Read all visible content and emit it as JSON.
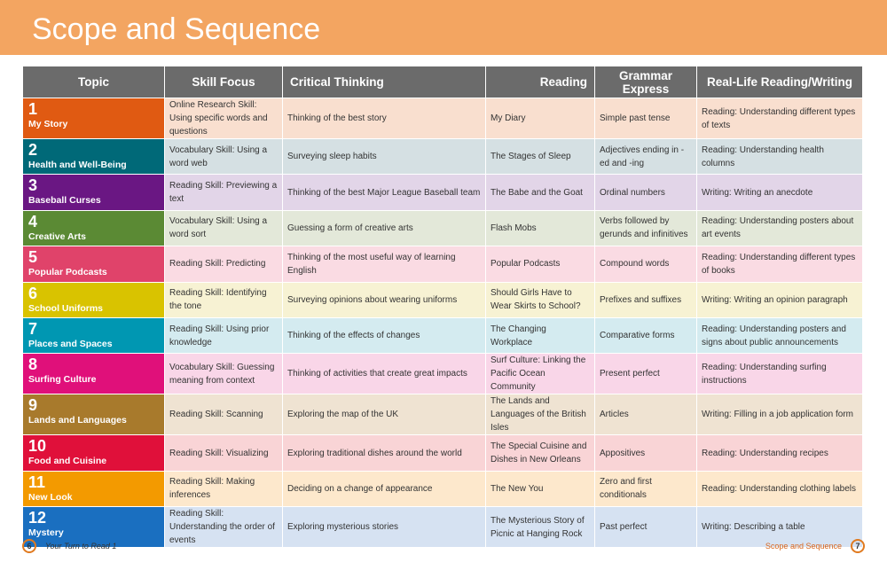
{
  "title": "Scope and Sequence",
  "headers": [
    "Topic",
    "Skill Focus",
    "Critical Thinking",
    "Reading",
    "Grammar Express",
    "Real-Life Reading/Writing"
  ],
  "rows": [
    {
      "num": "1",
      "topic": "My Story",
      "skill": "Online Research Skill: Using specific words and questions",
      "critical": "Thinking of the best story",
      "reading": "My Diary",
      "grammar": "Simple past tense",
      "real": "Reading: Understanding different types of texts",
      "color": "#e05a12",
      "bg": "#f9dfcf"
    },
    {
      "num": "2",
      "topic": "Health and Well-Being",
      "skill": "Vocabulary Skill: Using a word web",
      "critical": "Surveying sleep habits",
      "reading": "The Stages of Sleep",
      "grammar": "Adjectives ending in -ed and -ing",
      "real": "Reading: Understanding health columns",
      "color": "#006978",
      "bg": "#d5e0e3"
    },
    {
      "num": "3",
      "topic": "Baseball Curses",
      "skill": "Reading Skill: Previewing a text",
      "critical": "Thinking of the best Major League Baseball team",
      "reading": "The Babe and the Goat",
      "grammar": "Ordinal numbers",
      "real": "Writing: Writing an anecdote",
      "color": "#6a1783",
      "bg": "#e2d5e8"
    },
    {
      "num": "4",
      "topic": "Creative Arts",
      "skill": "Vocabulary Skill: Using a word sort",
      "critical": "Guessing a form of creative arts",
      "reading": "Flash Mobs",
      "grammar": "Verbs followed by gerunds and infinitives",
      "real": "Reading: Understanding posters about art events",
      "color": "#5b8a34",
      "bg": "#e3e8d9"
    },
    {
      "num": "5",
      "topic": "Popular Podcasts",
      "skill": "Reading Skill: Predicting",
      "critical": "Thinking of the most useful way of learning English",
      "reading": "Popular Podcasts",
      "grammar": "Compound words",
      "real": "Reading: Understanding different types of books",
      "color": "#e0436a",
      "bg": "#fadbe3"
    },
    {
      "num": "6",
      "topic": "School Uniforms",
      "skill": "Reading Skill: Identifying the tone",
      "critical": "Surveying opinions about wearing uniforms",
      "reading": "Should Girls Have to Wear Skirts to School?",
      "grammar": "Prefixes and suffixes",
      "real": "Writing: Writing an opinion paragraph",
      "color": "#d9c300",
      "bg": "#f7f2d3"
    },
    {
      "num": "7",
      "topic": "Places and Spaces",
      "skill": "Reading Skill: Using prior knowledge",
      "critical": "Thinking of the effects of changes",
      "reading": "The Changing Workplace",
      "grammar": "Comparative forms",
      "real": "Reading: Understanding posters and signs about public announcements",
      "color": "#0097b2",
      "bg": "#d4ebf0"
    },
    {
      "num": "8",
      "topic": "Surfing Culture",
      "skill": "Vocabulary Skill: Guessing meaning from context",
      "critical": "Thinking of activities that create great impacts",
      "reading": "Surf Culture: Linking the Pacific Ocean Community",
      "grammar": "Present perfect",
      "real": "Reading: Understanding surfing instructions",
      "color": "#e0107a",
      "bg": "#f9d6e8"
    },
    {
      "num": "9",
      "topic": "Lands and Languages",
      "skill": "Reading Skill: Scanning",
      "critical": "Exploring the map of the UK",
      "reading": "The Lands and Languages of the British Isles",
      "grammar": "Articles",
      "real": "Writing: Filling in a job application form",
      "color": "#a87a2c",
      "bg": "#efe3d2"
    },
    {
      "num": "10",
      "topic": "Food and Cuisine",
      "skill": "Reading Skill: Visualizing",
      "critical": "Exploring traditional dishes around the world",
      "reading": "The Special Cuisine and Dishes in New Orleans",
      "grammar": "Appositives",
      "real": "Reading: Understanding recipes",
      "color": "#e0103a",
      "bg": "#f9d4d6"
    },
    {
      "num": "11",
      "topic": "New Look",
      "skill": "Reading Skill: Making inferences",
      "critical": "Deciding on a change of appearance",
      "reading": "The New You",
      "grammar": "Zero and first conditionals",
      "real": "Reading: Understanding clothing labels",
      "color": "#f39a00",
      "bg": "#fde8cc"
    },
    {
      "num": "12",
      "topic": "Mystery",
      "skill": "Reading Skill: Understanding the order of events",
      "critical": "Exploring mysterious stories",
      "reading": "The Mysterious Story of Picnic at Hanging Rock",
      "grammar": "Past perfect",
      "real": "Writing: Describing a table",
      "color": "#1a6fc0",
      "bg": "#d6e2f2"
    }
  ],
  "footer": {
    "left_page": "6",
    "left_text": "Your Turn to Read 1",
    "right_text": "Scope and Sequence",
    "right_page": "7"
  }
}
